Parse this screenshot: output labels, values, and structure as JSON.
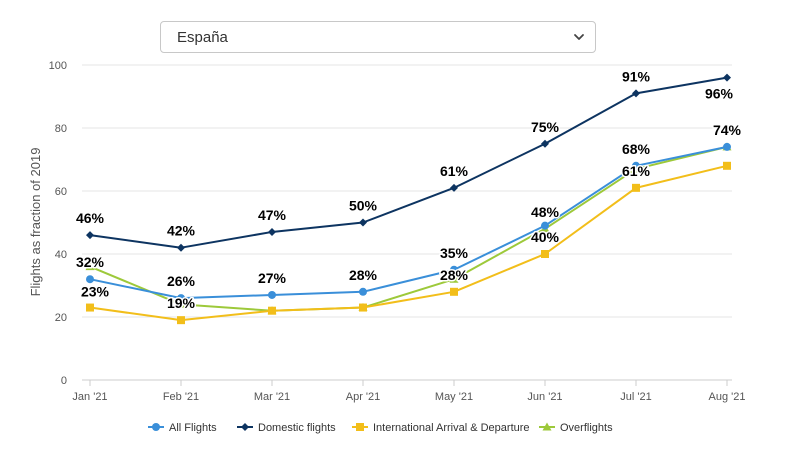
{
  "dropdown": {
    "selected": "España"
  },
  "chart_data": {
    "type": "line",
    "categories": [
      "Jan '21",
      "Feb '21",
      "Mar '21",
      "Apr '21",
      "May '21",
      "Jun '21",
      "Jul '21",
      "Aug '21"
    ],
    "ylabel": "Flights as fraction of 2019",
    "xlabel": "",
    "ylim": [
      0,
      100
    ],
    "yticks": [
      0,
      20,
      40,
      60,
      80,
      100
    ],
    "grid": true,
    "legend_position": "bottom",
    "series": [
      {
        "name": "All Flights",
        "color": "#3a8fd9",
        "marker": "circle",
        "values": [
          32,
          26,
          27,
          28,
          35,
          49,
          68,
          74
        ],
        "labels": [
          "32%",
          "26%",
          "27%",
          "28%",
          "35%",
          "",
          "68%",
          "74%"
        ]
      },
      {
        "name": "Domestic flights",
        "color": "#0d3461",
        "marker": "diamond",
        "values": [
          46,
          42,
          47,
          50,
          61,
          75,
          91,
          96
        ],
        "labels": [
          "46%",
          "42%",
          "47%",
          "50%",
          "61%",
          "75%",
          "91%",
          "96%"
        ]
      },
      {
        "name": "International Arrival & Departure",
        "color": "#f2be1a",
        "marker": "square",
        "values": [
          23,
          19,
          22,
          23,
          28,
          40,
          61,
          68
        ],
        "labels": [
          "23%",
          "19%",
          "",
          "",
          "28%",
          "40%",
          "61%",
          ""
        ]
      },
      {
        "name": "Overflights",
        "color": "#9dc93a",
        "marker": "triangle",
        "values": [
          36,
          24,
          22,
          23,
          32,
          48,
          67,
          74
        ],
        "labels": [
          "",
          "",
          "",
          "",
          "",
          "48%",
          "",
          ""
        ]
      }
    ]
  }
}
